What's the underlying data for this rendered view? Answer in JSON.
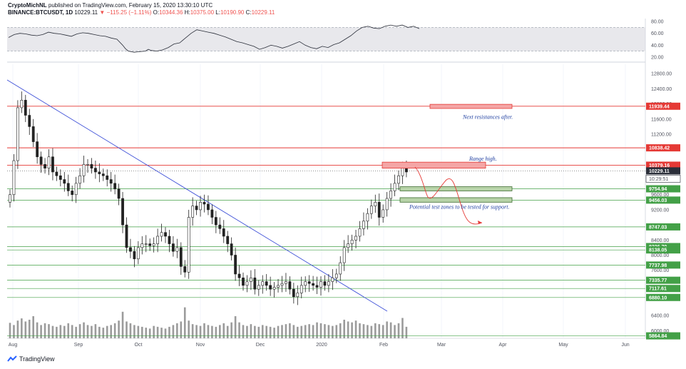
{
  "header": {
    "author": "CryptoMichNL",
    "published": "published on TradingView.com, February 15, 2020 13:30:10 UTC",
    "symbol": "BINANCE:BTCUSDT, 1D",
    "last": "10229.11",
    "change": "−115.25 (−1.11%)",
    "open_label": "O:",
    "open": "10344.36",
    "high_label": "H:",
    "high": "10375.00",
    "low_label": "L:",
    "low": "10190.90",
    "close_label": "C:",
    "close": "10229.11"
  },
  "footer": {
    "brand": "TradingView"
  },
  "colors": {
    "red_level": "#e53935",
    "green_level": "#43a047",
    "trendline": "#3f51d8",
    "candle": "#222222",
    "volume": "#8a8a8a",
    "rsi_band": "#e8e8ec",
    "resist_box": "#f4a6a6",
    "support_box": "#b7d3a8"
  },
  "chart_data": [
    {
      "type": "line",
      "name": "rsi",
      "yticks": [
        "80.00",
        "60.00",
        "40.00",
        "20.00"
      ],
      "ylim": [
        15,
        85
      ],
      "band": [
        30,
        70
      ],
      "x": [
        0,
        8,
        16,
        24,
        32,
        40,
        48,
        56,
        64,
        72,
        80,
        88,
        96,
        104,
        112,
        120,
        128,
        136,
        144,
        152,
        160,
        164,
        168,
        176,
        184,
        192,
        196,
        200,
        208,
        216,
        224,
        232,
        240,
        248,
        256,
        264,
        272,
        280,
        288,
        296,
        304,
        312,
        320,
        328,
        336,
        344,
        352,
        360,
        368,
        376,
        384,
        392,
        400,
        408,
        416,
        424,
        432,
        440,
        448,
        456,
        464,
        472,
        480,
        488,
        496,
        504,
        512,
        520,
        528,
        536,
        544,
        552,
        560,
        568,
        576
      ],
      "values": [
        53,
        58,
        60,
        59,
        57,
        56,
        58,
        62,
        60,
        59,
        57,
        55,
        59,
        61,
        60,
        58,
        56,
        55,
        52,
        50,
        40,
        34,
        30,
        28,
        29,
        30,
        33,
        31,
        30,
        32,
        36,
        42,
        44,
        52,
        60,
        66,
        64,
        62,
        60,
        57,
        54,
        50,
        46,
        44,
        41,
        38,
        33,
        36,
        40,
        38,
        35,
        38,
        42,
        46,
        40,
        36,
        34,
        38,
        36,
        41,
        44,
        50,
        56,
        64,
        70,
        72,
        69,
        68,
        72,
        74,
        72,
        74,
        70,
        72,
        68
      ]
    },
    {
      "type": "candlestick",
      "name": "price",
      "yticks": [
        "12800.00",
        "12400.00",
        "12000.00",
        "11600.00",
        "11200.00",
        "10800.00",
        "9200.00",
        "8400.00",
        "8000.00",
        "7600.00",
        "6400.00",
        "6000.00"
      ],
      "xticks": [
        "Aug",
        "Sep",
        "Oct",
        "Nov",
        "Dec",
        "2020",
        "Feb",
        "Mar",
        "Apr",
        "May",
        "Jun"
      ],
      "ylim": [
        5800,
        13050
      ],
      "closes": [
        9600,
        10500,
        11900,
        12100,
        11700,
        11400,
        11000,
        10600,
        10400,
        10300,
        10600,
        10200,
        10100,
        10000,
        9900,
        9700,
        9600,
        9900,
        10100,
        10400,
        10400,
        10300,
        10200,
        10150,
        10100,
        10000,
        9900,
        9750,
        9500,
        8800,
        8200,
        8100,
        7900,
        8200,
        8300,
        8300,
        8250,
        8300,
        8500,
        8600,
        8500,
        8300,
        8100,
        8200,
        7700,
        7550,
        9000,
        9300,
        9200,
        9400,
        9350,
        9200,
        9000,
        8800,
        8700,
        8500,
        8300,
        8000,
        7500,
        7400,
        7200,
        7300,
        7400,
        7100,
        7200,
        7300,
        7200,
        7100,
        7150,
        7200,
        7250,
        7300,
        7100,
        6900,
        7000,
        7200,
        7300,
        7250,
        7200,
        7150,
        7300,
        7200,
        7300,
        7400,
        7500,
        7800,
        8200,
        8300,
        8400,
        8500,
        8700,
        8900,
        9100,
        9300,
        9400,
        9000,
        9200,
        9500,
        9700,
        9900,
        10100,
        10300,
        10200
      ]
    },
    {
      "type": "bar",
      "name": "volume",
      "values": [
        35,
        30,
        40,
        45,
        38,
        42,
        50,
        36,
        30,
        34,
        32,
        28,
        26,
        30,
        28,
        34,
        30,
        26,
        32,
        36,
        30,
        28,
        32,
        26,
        24,
        28,
        30,
        34,
        40,
        60,
        38,
        34,
        30,
        28,
        26,
        24,
        22,
        28,
        26,
        24,
        22,
        26,
        30,
        34,
        38,
        70,
        40,
        32,
        30,
        28,
        34,
        30,
        28,
        26,
        30,
        34,
        28,
        36,
        50,
        36,
        30,
        28,
        32,
        28,
        26,
        30,
        28,
        26,
        24,
        28,
        30,
        32,
        34,
        30,
        26,
        28,
        30,
        32,
        30,
        36,
        34,
        32,
        30,
        28,
        30,
        34,
        42,
        38,
        36,
        40,
        34,
        32,
        30,
        28,
        34,
        32,
        30,
        38,
        36,
        30,
        34,
        46,
        26
      ]
    },
    {
      "type": "annotations",
      "levels_red": [
        {
          "price": 11939.44,
          "label": "11939.44"
        },
        {
          "price": 10838.42,
          "label": "10838.42"
        },
        {
          "price": 10379.16,
          "label": "10379.16"
        }
      ],
      "levels_green": [
        {
          "price": 9754.94,
          "label": "9754.94"
        },
        {
          "price": 9456.03,
          "label": "9456.03"
        },
        {
          "price": 8747.03,
          "label": "8747.03"
        },
        {
          "price": 8226.7,
          "label": "8226.70"
        },
        {
          "price": 8138.05,
          "label": "8138.05"
        },
        {
          "price": 7737.98,
          "label": "7737.98"
        },
        {
          "price": 7335.77,
          "label": "7335.77"
        },
        {
          "price": 7117.61,
          "label": "7117.61"
        },
        {
          "price": 6880.1,
          "label": "6880.10"
        },
        {
          "price": 5864.84,
          "label": "5864.84"
        }
      ],
      "last_price": {
        "price": 10229.11,
        "label": "10229.11"
      },
      "countdown": {
        "price": 10020,
        "label": "10:29:51"
      },
      "tick_9600": {
        "price": 9600,
        "label": "9600.00"
      },
      "notes": [
        {
          "text": "Next resistances after.",
          "price": 11640
        },
        {
          "text": "Range high.",
          "price": 10540
        },
        {
          "text": "Potential test zones to be tested for support.",
          "price": 9260
        }
      ]
    }
  ]
}
